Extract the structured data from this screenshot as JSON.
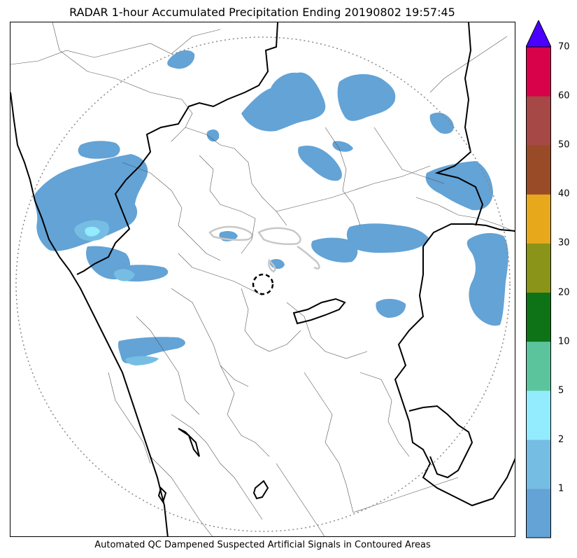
{
  "title": "RADAR 1-hour Accumulated Precipitation Ending 20190802 19:57:45",
  "footnote": "Automated QC Dampened Suspected Artificial Signals in Contoured Areas",
  "colorbar": {
    "tick_labels": [
      "1",
      "2",
      "5",
      "10",
      "20",
      "30",
      "40",
      "50",
      "60",
      "70"
    ],
    "bins": [
      {
        "color": "#63a3d6"
      },
      {
        "color": "#76bde3"
      },
      {
        "color": "#92ecfd"
      },
      {
        "color": "#5cc49c"
      },
      {
        "color": "#0e7317"
      },
      {
        "color": "#8a9418"
      },
      {
        "color": "#e8a81c"
      },
      {
        "color": "#994b27"
      },
      {
        "color": "#a54846"
      },
      {
        "color": "#d8024a"
      }
    ],
    "extend_color": "#4b00ff"
  },
  "colors": {
    "precip_light": "#63a3d6",
    "precip_medium": "#76bde3",
    "precip_heavy": "#92ecfd",
    "coastline": "#000000",
    "state_border": "#000000",
    "district_border": "#555555",
    "range_ring": "#888888",
    "qc_contour": "#c8c8c8"
  }
}
